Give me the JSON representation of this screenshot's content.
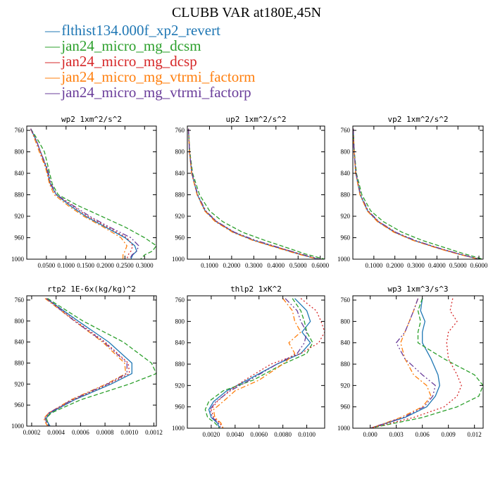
{
  "title": "CLUBB VAR at180E,45N",
  "legend": [
    {
      "name": "flthist134.000f_xp2_revert",
      "color": "#1f77b4"
    },
    {
      "name": "jan24_micro_mg_dcsm",
      "color": "#2ca02c"
    },
    {
      "name": "jan24_micro_mg_dcsp",
      "color": "#d62728"
    },
    {
      "name": "jan24_micro_mg_vtrmi_factorm",
      "color": "#ff7f0e"
    },
    {
      "name": "jan24_micro_mg_vtrmi_factorp",
      "color": "#6a3d9a"
    }
  ],
  "chart_data": [
    {
      "type": "line",
      "title": "wp2   1xm^2/s^2",
      "ylim": [
        1000,
        752
      ],
      "xlim": [
        0.0,
        0.33
      ],
      "yticks": [
        760,
        800,
        840,
        880,
        920,
        960,
        1000
      ],
      "xticks": [
        0.05,
        0.1,
        0.15,
        0.2,
        0.25,
        0.3
      ],
      "xticklabels": [
        "0.0500",
        "0.1000",
        "0.1500",
        "0.2000",
        "0.2500",
        "0.3000"
      ],
      "y": [
        757,
        780,
        800,
        830,
        860,
        880,
        900,
        920,
        940,
        960,
        975,
        985,
        992,
        1000
      ],
      "series": [
        {
          "values": [
            0.01,
            0.025,
            0.035,
            0.05,
            0.06,
            0.075,
            0.11,
            0.15,
            0.2,
            0.25,
            0.275,
            0.28,
            0.27,
            0.265
          ]
        },
        {
          "values": [
            0.01,
            0.03,
            0.045,
            0.055,
            0.065,
            0.08,
            0.13,
            0.19,
            0.25,
            0.3,
            0.33,
            0.32,
            0.3,
            0.29
          ]
        },
        {
          "values": [
            0.01,
            0.025,
            0.035,
            0.05,
            0.06,
            0.075,
            0.115,
            0.155,
            0.205,
            0.255,
            0.27,
            0.265,
            0.258,
            0.255
          ]
        },
        {
          "values": [
            0.01,
            0.022,
            0.032,
            0.048,
            0.058,
            0.07,
            0.105,
            0.145,
            0.195,
            0.24,
            0.255,
            0.25,
            0.245,
            0.245
          ]
        },
        {
          "values": [
            0.01,
            0.025,
            0.035,
            0.052,
            0.062,
            0.076,
            0.118,
            0.16,
            0.21,
            0.265,
            0.285,
            0.28,
            0.268,
            0.262
          ]
        }
      ]
    },
    {
      "type": "line",
      "title": "up2   1xm^2/s^2",
      "ylim": [
        1000,
        752
      ],
      "xlim": [
        0.0,
        0.62
      ],
      "yticks": [
        760,
        800,
        840,
        880,
        920,
        960,
        1000
      ],
      "xticks": [
        0.1,
        0.2,
        0.3,
        0.4,
        0.5,
        0.6
      ],
      "xticklabels": [
        "0.1000",
        "0.2000",
        "0.3000",
        "0.4000",
        "0.5000",
        "0.6000"
      ],
      "y": [
        757,
        800,
        840,
        880,
        910,
        930,
        950,
        965,
        980,
        990,
        1000
      ],
      "series": [
        {
          "values": [
            0.005,
            0.01,
            0.02,
            0.045,
            0.08,
            0.13,
            0.21,
            0.3,
            0.42,
            0.5,
            0.59
          ]
        },
        {
          "values": [
            0.005,
            0.011,
            0.024,
            0.055,
            0.1,
            0.16,
            0.25,
            0.35,
            0.46,
            0.53,
            0.62
          ]
        },
        {
          "values": [
            0.005,
            0.01,
            0.02,
            0.046,
            0.082,
            0.132,
            0.212,
            0.305,
            0.425,
            0.505,
            0.595
          ]
        },
        {
          "values": [
            0.005,
            0.01,
            0.019,
            0.044,
            0.078,
            0.126,
            0.205,
            0.295,
            0.415,
            0.495,
            0.59
          ]
        },
        {
          "values": [
            0.005,
            0.01,
            0.021,
            0.047,
            0.083,
            0.134,
            0.214,
            0.308,
            0.428,
            0.508,
            0.598
          ]
        }
      ]
    },
    {
      "type": "line",
      "title": "vp2   1xm^2/s^2",
      "ylim": [
        1000,
        752
      ],
      "xlim": [
        0.0,
        0.62
      ],
      "yticks": [
        760,
        800,
        840,
        880,
        920,
        960,
        1000
      ],
      "xticks": [
        0.1,
        0.2,
        0.3,
        0.4,
        0.5,
        0.6
      ],
      "xticklabels": [
        "0.1000",
        "0.2000",
        "0.3000",
        "0.4000",
        "0.5000",
        "0.6000"
      ],
      "y": [
        757,
        800,
        840,
        880,
        910,
        930,
        950,
        965,
        980,
        990,
        1000
      ],
      "series": [
        {
          "values": [
            0.002,
            0.006,
            0.014,
            0.035,
            0.07,
            0.12,
            0.2,
            0.29,
            0.41,
            0.5,
            0.6
          ]
        },
        {
          "values": [
            0.002,
            0.007,
            0.017,
            0.043,
            0.085,
            0.145,
            0.235,
            0.33,
            0.45,
            0.53,
            0.62
          ]
        },
        {
          "values": [
            0.002,
            0.006,
            0.014,
            0.036,
            0.072,
            0.122,
            0.203,
            0.293,
            0.412,
            0.502,
            0.602
          ]
        },
        {
          "values": [
            0.002,
            0.006,
            0.013,
            0.034,
            0.068,
            0.117,
            0.196,
            0.286,
            0.406,
            0.496,
            0.598
          ]
        },
        {
          "values": [
            0.002,
            0.006,
            0.015,
            0.037,
            0.073,
            0.124,
            0.205,
            0.296,
            0.415,
            0.505,
            0.604
          ]
        }
      ]
    },
    {
      "type": "line",
      "title": "rtp2   1E-6x(kg/kg)^2",
      "ylim": [
        1000,
        752
      ],
      "xlim": [
        0.00016,
        0.00122
      ],
      "yticks": [
        760,
        800,
        840,
        880,
        920,
        960,
        1000
      ],
      "xticks": [
        0.0002,
        0.0004,
        0.0006,
        0.0008,
        0.001,
        0.0012
      ],
      "xticklabels": [
        "0.0002",
        "0.0004",
        "0.0006",
        "0.0008",
        "0.0010",
        "0.0012"
      ],
      "y": [
        757,
        800,
        840,
        880,
        900,
        920,
        950,
        975,
        985,
        992,
        1000
      ],
      "series": [
        {
          "values": [
            0.00032,
            0.00058,
            0.00083,
            0.00102,
            0.00102,
            0.00085,
            0.00055,
            0.00035,
            0.00032,
            0.00033,
            0.00035
          ]
        },
        {
          "values": [
            0.00033,
            0.00062,
            0.00095,
            0.00118,
            0.00122,
            0.001,
            0.0006,
            0.00036,
            0.00032,
            0.00033,
            0.00034
          ]
        },
        {
          "values": [
            0.00032,
            0.00056,
            0.0008,
            0.00099,
            0.001,
            0.00083,
            0.00054,
            0.00034,
            0.00031,
            0.00032,
            0.00034
          ]
        },
        {
          "values": [
            0.00031,
            0.00055,
            0.00078,
            0.00096,
            0.00097,
            0.00081,
            0.00052,
            0.00034,
            0.0003,
            0.00031,
            0.00033
          ]
        },
        {
          "values": [
            0.00032,
            0.00055,
            0.00079,
            0.00098,
            0.00098,
            0.00082,
            0.00053,
            0.00034,
            0.00031,
            0.00032,
            0.00034
          ]
        }
      ]
    },
    {
      "type": "line",
      "title": "thlp2   1xK^2",
      "ylim": [
        1000,
        752
      ],
      "xlim": [
        0.0,
        0.0115
      ],
      "yticks": [
        760,
        800,
        840,
        880,
        920,
        960,
        1000
      ],
      "xticks": [
        0.002,
        0.004,
        0.006,
        0.008,
        0.01
      ],
      "xticklabels": [
        "0.0020",
        "0.0040",
        "0.0060",
        "0.0080",
        "0.0100"
      ],
      "y": [
        757,
        780,
        800,
        820,
        840,
        860,
        880,
        910,
        930,
        950,
        965,
        980,
        990,
        1000
      ],
      "series": [
        {
          "values": [
            0.009,
            0.01,
            0.0103,
            0.0096,
            0.0103,
            0.0095,
            0.0075,
            0.005,
            0.0033,
            0.0022,
            0.0018,
            0.002,
            0.0025,
            0.0027
          ]
        },
        {
          "values": [
            0.0088,
            0.0095,
            0.0098,
            0.01,
            0.0105,
            0.01,
            0.008,
            0.0055,
            0.003,
            0.0018,
            0.0015,
            0.0017,
            0.0023,
            0.0027
          ]
        },
        {
          "values": [
            0.0095,
            0.0108,
            0.0112,
            0.0115,
            0.011,
            0.0095,
            0.007,
            0.0048,
            0.0035,
            0.0025,
            0.002,
            0.0022,
            0.0027,
            0.003
          ]
        },
        {
          "values": [
            0.008,
            0.0088,
            0.009,
            0.0095,
            0.0085,
            0.009,
            0.008,
            0.006,
            0.004,
            0.003,
            0.0022,
            0.0023,
            0.0028,
            0.003
          ]
        },
        {
          "values": [
            0.0082,
            0.0092,
            0.0095,
            0.01,
            0.0098,
            0.0092,
            0.0075,
            0.0052,
            0.0036,
            0.0024,
            0.0019,
            0.0021,
            0.0026,
            0.0028
          ]
        }
      ]
    },
    {
      "type": "line",
      "title": "wp3   1xm^3/s^3",
      "ylim": [
        1000,
        752
      ],
      "xlim": [
        -0.002,
        0.013
      ],
      "yticks": [
        760,
        800,
        840,
        880,
        920,
        960,
        1000
      ],
      "xticks": [
        0.0,
        0.003,
        0.006,
        0.009,
        0.012
      ],
      "xticklabels": [
        "0.000",
        "0.003",
        "0.006",
        "0.009",
        "0.012"
      ],
      "y": [
        757,
        780,
        800,
        820,
        840,
        870,
        900,
        920,
        940,
        960,
        980,
        990,
        1000
      ],
      "series": [
        {
          "values": [
            0.006,
            0.0058,
            0.0063,
            0.006,
            0.006,
            0.007,
            0.0078,
            0.008,
            0.0075,
            0.0065,
            0.004,
            0.002,
            0.0
          ]
        },
        {
          "values": [
            0.006,
            0.0055,
            0.0058,
            0.0055,
            0.0055,
            0.0085,
            0.012,
            0.013,
            0.0125,
            0.01,
            0.006,
            0.003,
            0.0
          ]
        },
        {
          "values": [
            0.0095,
            0.0092,
            0.01,
            0.009,
            0.0088,
            0.009,
            0.01,
            0.0105,
            0.01,
            0.0085,
            0.005,
            0.0025,
            0.0
          ]
        },
        {
          "values": [
            0.0055,
            0.005,
            0.0045,
            0.004,
            0.0035,
            0.004,
            0.005,
            0.0065,
            0.007,
            0.006,
            0.0035,
            0.0018,
            0.0
          ]
        },
        {
          "values": [
            0.0055,
            0.005,
            0.0045,
            0.004,
            0.003,
            0.004,
            0.006,
            0.0075,
            0.0072,
            0.0062,
            0.0038,
            0.0019,
            0.0
          ]
        }
      ]
    }
  ]
}
